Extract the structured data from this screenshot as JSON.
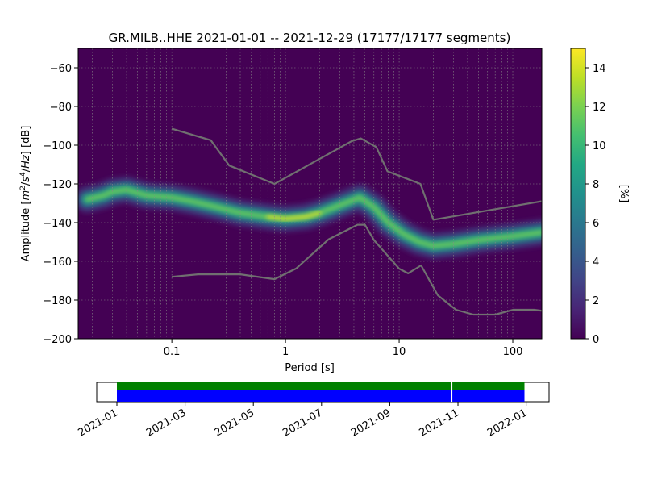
{
  "chart_data": [
    {
      "type": "heatmap",
      "title": "GR.MILB..HHE   2021-01-01 -- 2021-12-29  (17177/17177 segments)",
      "xlabel": "Period [s]",
      "ylabel_parts": [
        "Amplitude [",
        "m",
        "2",
        "/",
        "s",
        "4",
        "/",
        "Hz",
        "] [dB]"
      ],
      "x_scale": "log",
      "xlim": [
        0.015,
        180
      ],
      "ylim": [
        -200,
        -50
      ],
      "x_ticks": [
        0.1,
        1,
        10,
        100
      ],
      "x_tick_labels": [
        "0.1",
        "1",
        "10",
        "100"
      ],
      "y_ticks": [
        -200,
        -180,
        -160,
        -140,
        -120,
        -100,
        -80,
        -60
      ],
      "y_tick_labels": [
        "−200",
        "−180",
        "−160",
        "−140",
        "−120",
        "−100",
        "−80",
        "−60"
      ],
      "grid": true,
      "colorbar": {
        "label": "[%]",
        "range": [
          0,
          15
        ],
        "ticks": [
          0,
          2,
          4,
          6,
          8,
          10,
          12,
          14
        ],
        "tick_labels": [
          "0",
          "2",
          "4",
          "6",
          "8",
          "10",
          "12",
          "14"
        ]
      },
      "psd_mode_curve": {
        "name": "mode",
        "period": [
          0.018,
          0.025,
          0.03,
          0.04,
          0.06,
          0.1,
          0.15,
          0.25,
          0.4,
          0.7,
          1.0,
          1.5,
          2.0,
          3.0,
          4.5,
          6.0,
          8.0,
          11.0,
          15.0,
          20.0,
          30.0,
          50.0,
          100.0,
          180.0
        ],
        "amplitude_db": [
          -128,
          -126,
          -124,
          -123,
          -126,
          -127,
          -129,
          -132,
          -135,
          -137,
          -138,
          -137,
          -135,
          -131,
          -127,
          -132,
          -140,
          -146,
          -150,
          -152,
          -151,
          -149,
          -147,
          -145
        ]
      },
      "noise_model_curves": [
        {
          "name": "high-noise",
          "period": [
            0.1,
            0.22,
            0.32,
            0.8,
            3.8,
            4.6,
            6.3,
            7.9,
            15.4,
            20.0,
            354.8
          ],
          "amplitude_db": [
            -91.5,
            -97.4,
            -110.5,
            -120.0,
            -98.0,
            -96.5,
            -101.0,
            -113.5,
            -120.0,
            -138.5,
            -126.0
          ]
        },
        {
          "name": "low-noise",
          "period": [
            0.1,
            0.17,
            0.4,
            0.8,
            1.24,
            2.4,
            4.3,
            5.0,
            6.0,
            10.0,
            12.0,
            15.6,
            21.9,
            31.6,
            45.0,
            70.0,
            101.0,
            154.0,
            328.0
          ],
          "amplitude_db": [
            -168.0,
            -166.7,
            -166.7,
            -169.2,
            -163.7,
            -148.6,
            -141.1,
            -141.1,
            -149.0,
            -163.8,
            -166.2,
            -162.1,
            -177.5,
            -185.0,
            -187.5,
            -187.5,
            -185.0,
            -185.0,
            -187.5
          ]
        }
      ]
    },
    {
      "type": "timeline",
      "x_tick_labels": [
        "2021-01",
        "2021-03",
        "2021-05",
        "2021-07",
        "2021-09",
        "2021-11",
        "2022-01"
      ],
      "x_tick_months_from_2021_01": [
        0,
        2,
        4,
        6,
        8,
        10,
        12
      ],
      "x_range_months": [
        0,
        12.6
      ],
      "data_span_months": [
        0,
        11.95
      ],
      "gap_at_month": 9.8,
      "colors": {
        "upper_band": "#008000",
        "lower_band": "#0000ff",
        "gap": "#ffffff"
      }
    }
  ]
}
